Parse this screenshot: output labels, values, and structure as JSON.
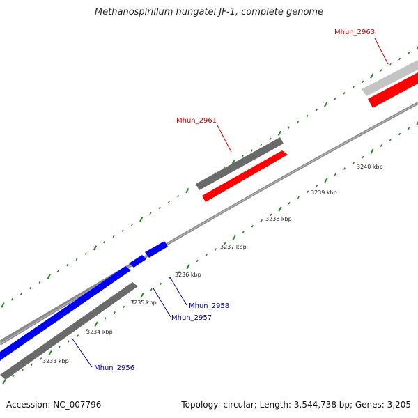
{
  "title": "Methanospirillum hungatei JF-1, complete genome",
  "footer": {
    "accession": "Accession: NC_007796",
    "summary": "Topology: circular; Length: 3,544,738 bp; Genes: 3,205"
  },
  "colors": {
    "backbone": "#8a8a8a",
    "tick": "#1e8a1e",
    "blue_gene": "#0000ee",
    "red_gene": "#ff0000",
    "dark_gene": "#6a6a6a",
    "light_gene": "#c4c4c4",
    "red_label": "#cc0000",
    "blue_label": "#0000aa"
  },
  "scale_labels": [
    "3233 kbp",
    "3234 kbp",
    "3235 kbp",
    "3236 kbp",
    "3237 kbp",
    "3238 kbp",
    "3239 kbp",
    "3240 kbp"
  ],
  "genes": {
    "mhun_2956": "Mhun_2956",
    "mhun_2957": "Mhun_2957",
    "mhun_2958": "Mhun_2958",
    "mhun_2961": "Mhun_2961",
    "mhun_2963": "Mhun_2963"
  }
}
